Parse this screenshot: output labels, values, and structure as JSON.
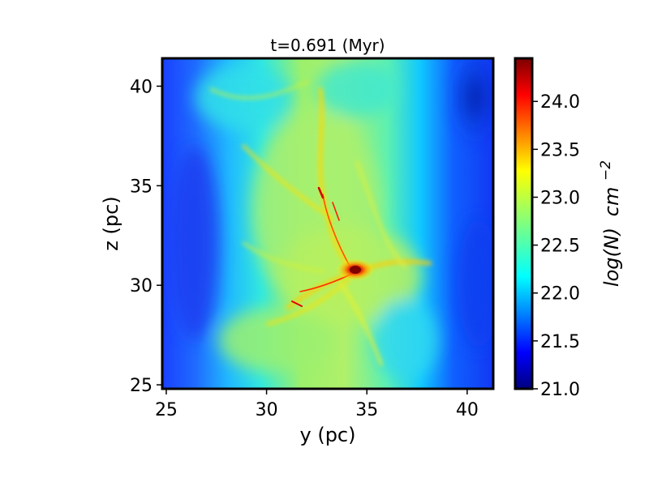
{
  "chart_data": {
    "type": "heatmap",
    "title": "t=0.691 (Myr)",
    "xlabel": "y (pc)",
    "ylabel": "z (pc)",
    "xlim": [
      24.8,
      41.3
    ],
    "ylim": [
      24.8,
      41.4
    ],
    "xticks": [
      25,
      30,
      35,
      40
    ],
    "yticks": [
      25,
      30,
      35,
      40
    ],
    "xtick_labels": [
      "25",
      "30",
      "35",
      "40"
    ],
    "ytick_labels": [
      "25",
      "30",
      "35",
      "40"
    ],
    "colorbar": {
      "label_main": "log(N)",
      "label_unit": "cm",
      "label_exp": "−2",
      "colormap": "jet",
      "range": [
        21.0,
        24.45
      ],
      "ticks": [
        21.0,
        21.5,
        22.0,
        22.5,
        23.0,
        23.5,
        24.0
      ],
      "tick_labels": [
        "21.0",
        "21.5",
        "22.0",
        "22.5",
        "23.0",
        "23.5",
        "24.0"
      ]
    },
    "grid": false,
    "description_features": {
      "dense_core_center": [
        34.5,
        30.8
      ],
      "filament_ridge_x": 33.5,
      "low_density_edges": true
    }
  }
}
